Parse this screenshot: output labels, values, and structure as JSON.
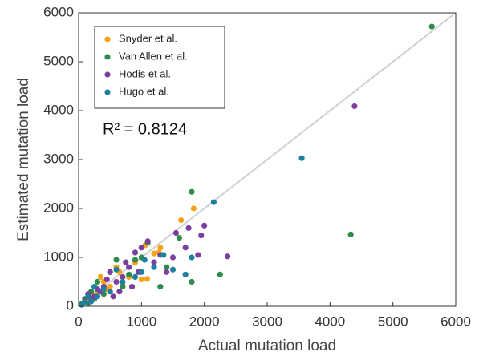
{
  "chart_data": {
    "type": "scatter",
    "x_label": "Actual mutation load",
    "y_label": "Estimated mutation load",
    "annotation": "R² = 0.8124",
    "xlim": [
      0,
      6000
    ],
    "ylim": [
      0,
      6000
    ],
    "xticks": [
      0,
      1000,
      2000,
      3000,
      4000,
      5000,
      6000
    ],
    "yticks": [
      0,
      1000,
      2000,
      3000,
      4000,
      5000,
      6000
    ],
    "grid": false,
    "legend": "upper left",
    "series": [
      {
        "name": "Snyder et al.",
        "color": "#f5a31a",
        "x": [
          1830,
          1630,
          1060,
          1300,
          1280,
          1200,
          1090,
          650,
          400,
          300,
          600,
          900,
          500,
          200,
          350,
          1000,
          800,
          150,
          450,
          700
        ],
        "values": [
          2000,
          1760,
          1250,
          1200,
          1100,
          1080,
          560,
          700,
          500,
          300,
          800,
          900,
          400,
          250,
          600,
          550,
          600,
          100,
          350,
          450
        ]
      },
      {
        "name": "Van Allen et al.",
        "color": "#2e8b4a",
        "x": [
          5620,
          4330,
          1800,
          2250,
          1800,
          1600,
          1300,
          1400,
          900,
          600,
          500,
          300,
          200,
          100,
          50,
          400,
          700,
          1000,
          1100,
          800,
          250,
          150
        ],
        "values": [
          5720,
          1470,
          2340,
          650,
          500,
          1400,
          400,
          800,
          950,
          950,
          700,
          500,
          300,
          150,
          50,
          250,
          400,
          1000,
          1300,
          650,
          150,
          60
        ]
      },
      {
        "name": "Hodis et al.",
        "color": "#7b3fa0",
        "x": [
          4390,
          2370,
          2000,
          1950,
          1700,
          1550,
          1400,
          1200,
          1100,
          1000,
          900,
          800,
          700,
          600,
          500,
          450,
          400,
          350,
          300,
          250,
          200,
          150,
          100,
          650,
          850,
          550,
          1500,
          1750,
          1900,
          1300,
          950,
          750
        ],
        "values": [
          4090,
          1020,
          1650,
          1450,
          1200,
          1500,
          700,
          900,
          1330,
          1200,
          1100,
          800,
          600,
          500,
          700,
          550,
          400,
          300,
          350,
          200,
          150,
          250,
          100,
          300,
          400,
          200,
          1000,
          1600,
          1050,
          1050,
          700,
          900
        ]
      },
      {
        "name": "Hugo et al.",
        "color": "#1f7f9f",
        "x": [
          3550,
          2150,
          1800,
          1700,
          1500,
          1350,
          1200,
          1050,
          900,
          700,
          500,
          400,
          300,
          200,
          100,
          50,
          250,
          600,
          1000,
          150
        ],
        "values": [
          3030,
          2130,
          1000,
          650,
          750,
          1050,
          800,
          950,
          600,
          500,
          300,
          350,
          200,
          100,
          80,
          30,
          400,
          750,
          700,
          200
        ]
      }
    ]
  }
}
